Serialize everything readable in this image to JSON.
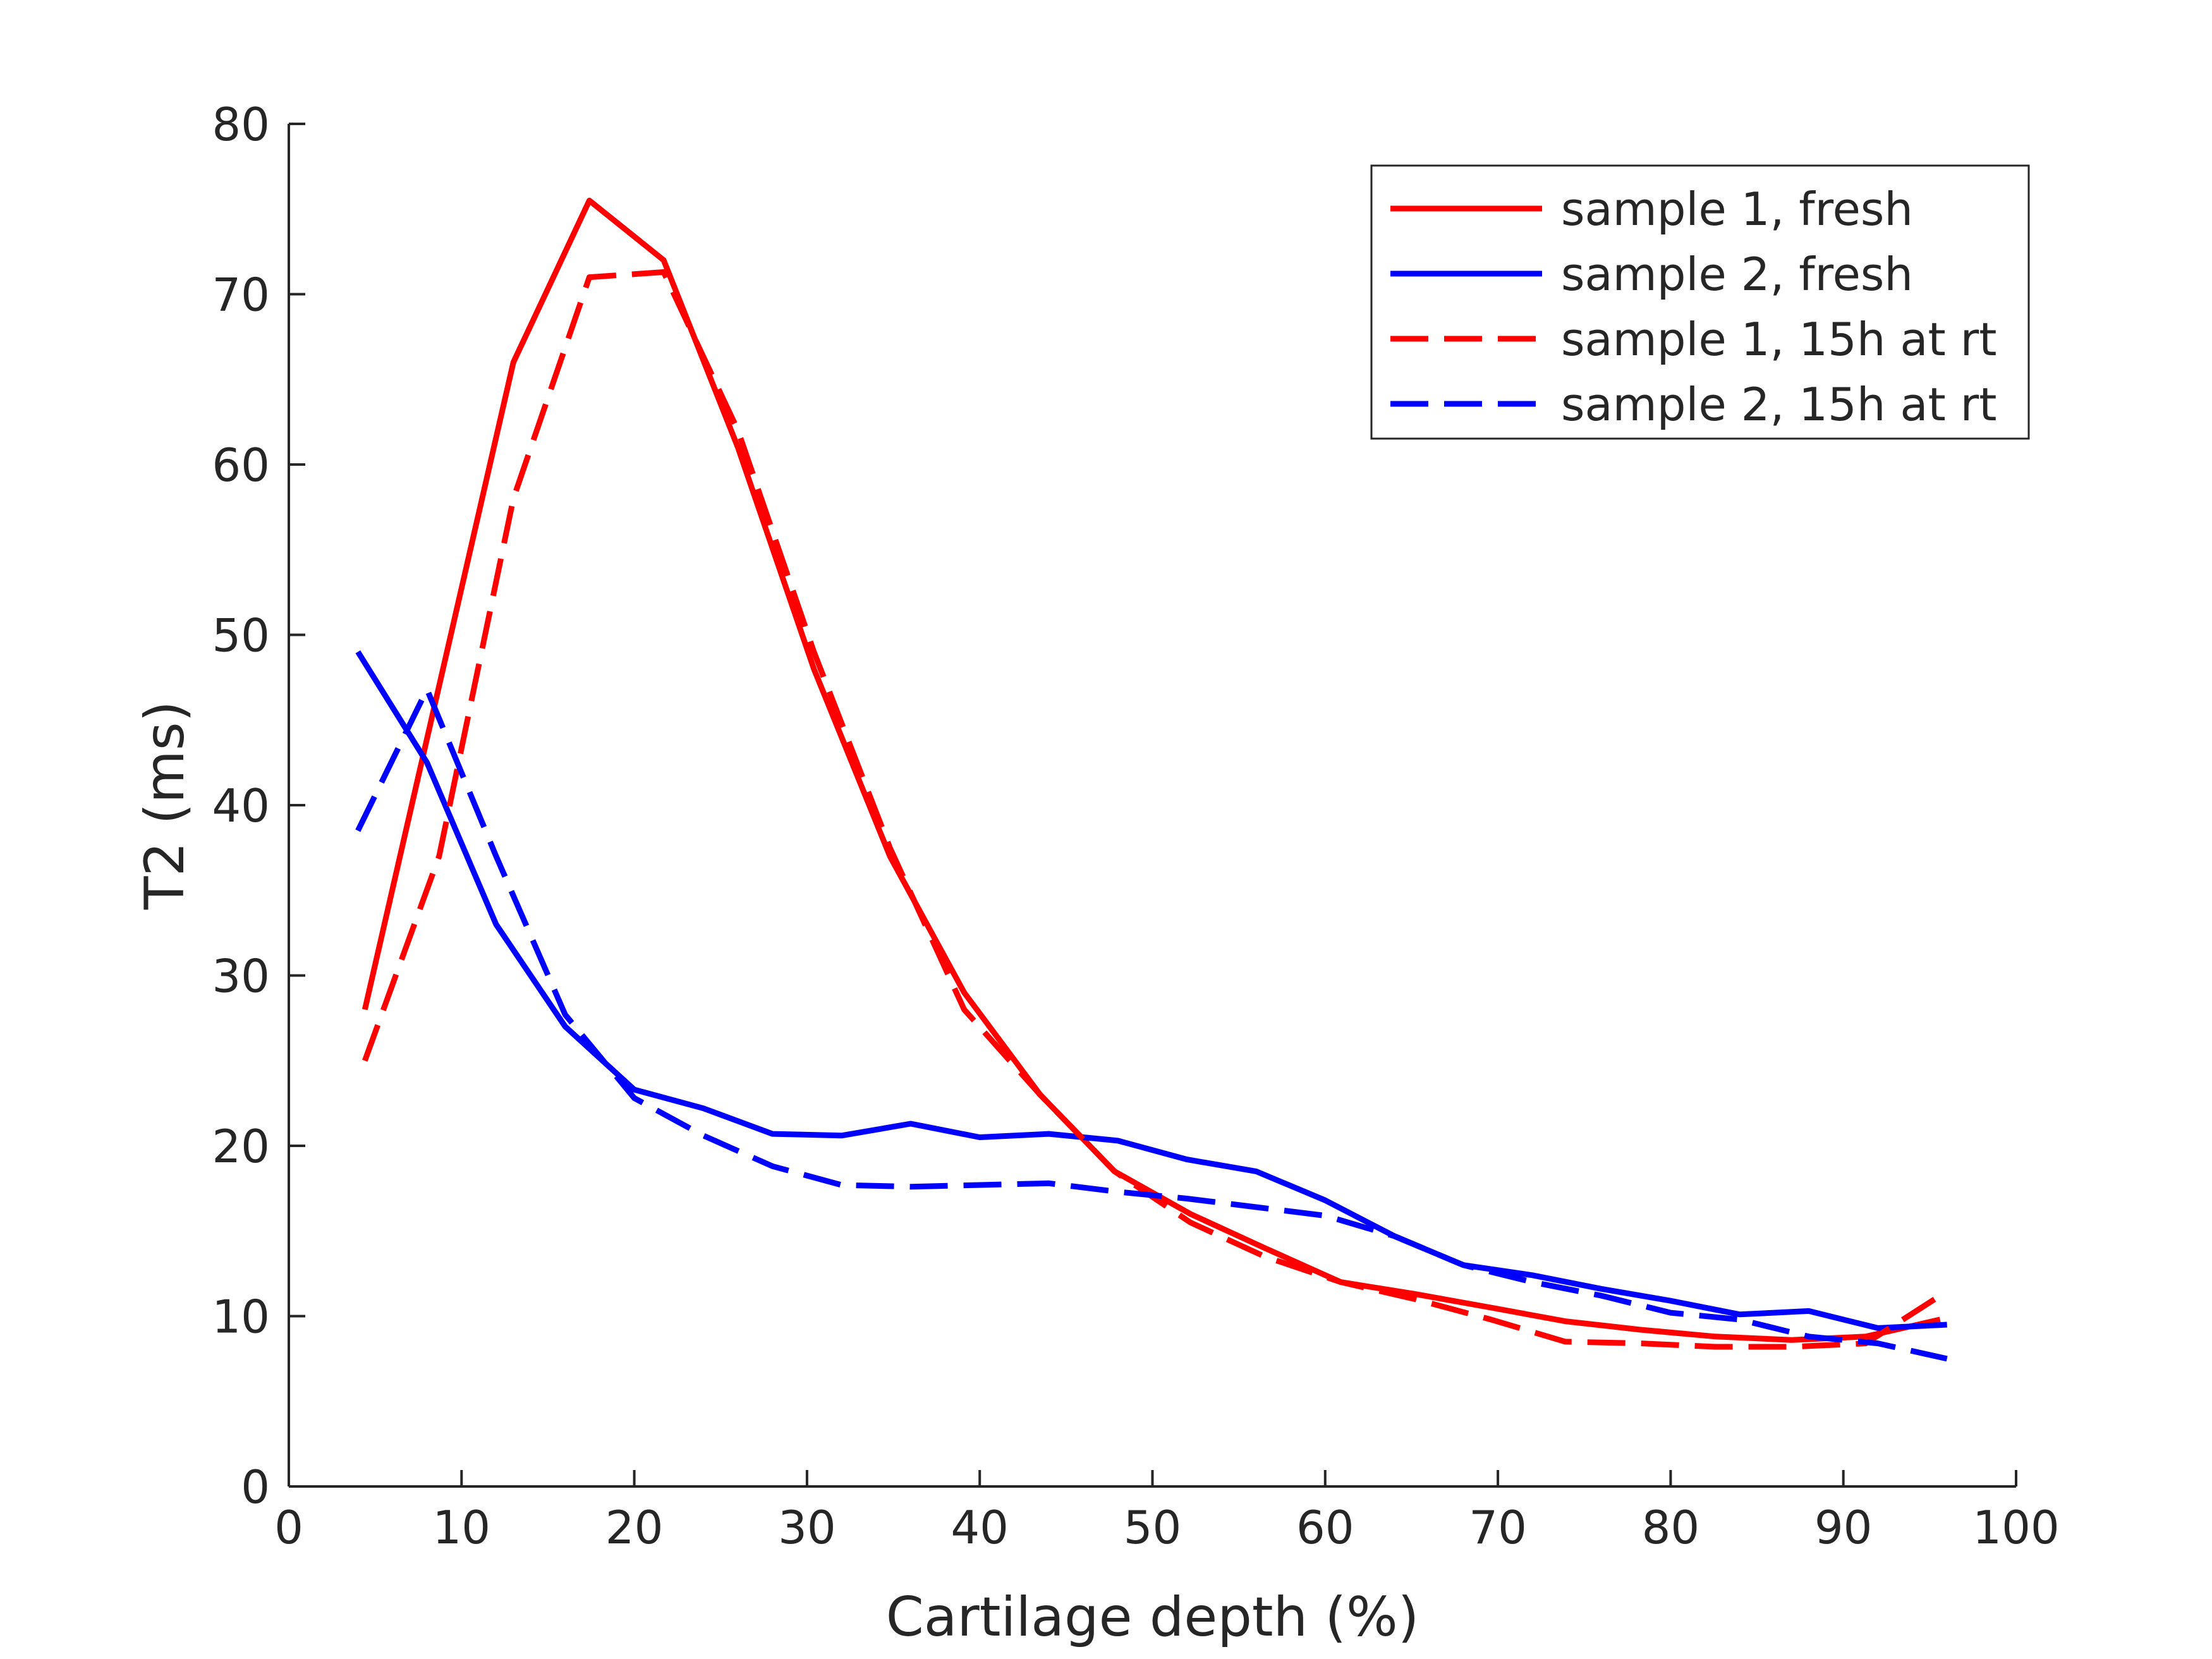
{
  "chart_data": {
    "type": "line",
    "title": "",
    "xlabel": "Cartilage depth (%)",
    "ylabel": "T2 (ms)",
    "xlim": [
      0,
      100
    ],
    "ylim": [
      0,
      80
    ],
    "xticks": [
      "0",
      "10",
      "20",
      "30",
      "40",
      "50",
      "60",
      "70",
      "80",
      "90",
      "100"
    ],
    "yticks": [
      "0",
      "10",
      "20",
      "30",
      "40",
      "50",
      "60",
      "70",
      "80"
    ],
    "grid": false,
    "legend_position": "top-right",
    "series": [
      {
        "name": "sample 1, fresh",
        "color": "#ff0000",
        "dash": "solid",
        "x": [
          4.4,
          8.7,
          13,
          17.4,
          21.7,
          26,
          30.4,
          34.8,
          39.1,
          43.5,
          47.8,
          52.2,
          56.5,
          60.9,
          65.2,
          69.6,
          73.9,
          78.3,
          82.6,
          87,
          91.3,
          95.6
        ],
        "y": [
          28,
          47,
          66,
          75.5,
          72,
          61,
          48,
          37,
          29,
          23,
          18.5,
          16,
          14,
          12,
          11.3,
          10.5,
          9.7,
          9.2,
          8.8,
          8.6,
          8.8,
          9.8
        ]
      },
      {
        "name": "sample 2, fresh",
        "color": "#0000ff",
        "dash": "solid",
        "x": [
          4,
          8,
          12,
          16,
          20,
          24,
          28,
          32,
          36,
          40,
          44,
          48,
          52,
          56,
          60,
          64,
          68,
          72,
          76,
          80,
          84,
          88,
          92,
          96
        ],
        "y": [
          49,
          42.5,
          33,
          27,
          23.3,
          22.2,
          20.7,
          20.6,
          21.3,
          20.5,
          20.7,
          20.3,
          19.2,
          18.5,
          16.8,
          14.7,
          13,
          12.4,
          11.6,
          10.9,
          10.1,
          10.3,
          9.3,
          9.5
        ]
      },
      {
        "name": "sample 1, 15h at rt",
        "color": "#ff0000",
        "dash": "dashed",
        "x": [
          4.4,
          8.7,
          13,
          17.4,
          21.7,
          26,
          30.4,
          34.8,
          39.1,
          43.5,
          47.8,
          52.2,
          56.5,
          60.9,
          65.2,
          69.6,
          73.9,
          78.3,
          82.6,
          87,
          91.3,
          95.6
        ],
        "y": [
          25,
          37,
          58,
          71,
          71.3,
          62,
          49,
          37.5,
          28,
          23,
          18.5,
          15.5,
          13.5,
          12,
          11,
          9.8,
          8.5,
          8.4,
          8.2,
          8.2,
          8.4,
          11.2
        ]
      },
      {
        "name": "sample 2, 15h at rt",
        "color": "#0000ff",
        "dash": "dashed",
        "x": [
          4,
          8,
          12,
          16,
          20,
          24,
          28,
          32,
          36,
          40,
          44,
          48,
          52,
          56,
          60,
          64,
          68,
          72,
          76,
          80,
          84,
          88,
          92,
          96
        ],
        "y": [
          38.5,
          46.8,
          37,
          27.7,
          22.8,
          20.6,
          18.8,
          17.7,
          17.6,
          17.7,
          17.8,
          17.3,
          16.9,
          16.4,
          15.9,
          14.7,
          13,
          12,
          11.2,
          10.2,
          9.8,
          8.8,
          8.4,
          7.5
        ]
      }
    ]
  }
}
